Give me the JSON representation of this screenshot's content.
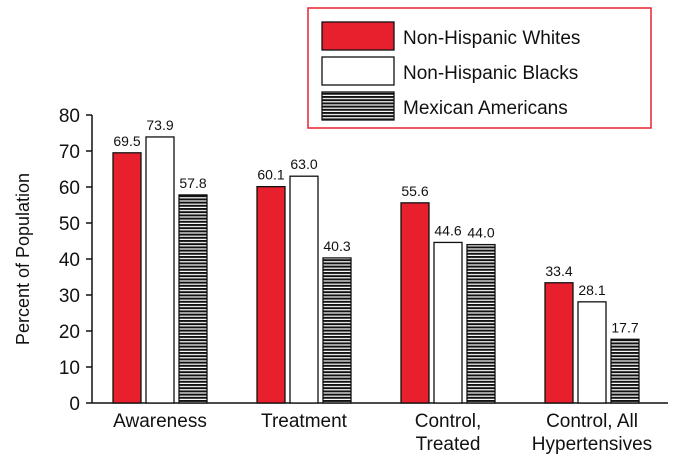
{
  "chart_data": {
    "type": "bar",
    "ylabel": "Percent of  Population",
    "ylim": [
      0,
      80
    ],
    "yticks": [
      0,
      10,
      20,
      30,
      40,
      50,
      60,
      70,
      80
    ],
    "categories": [
      [
        "Awareness"
      ],
      [
        "Treatment"
      ],
      [
        "Control,",
        "Treated"
      ],
      [
        "Control, All",
        "Hypertensives"
      ]
    ],
    "series": [
      {
        "name": "Non-Hispanic Whites",
        "values": [
          69.5,
          60.1,
          55.6,
          33.4
        ],
        "labels": [
          "69.5",
          "60.1",
          "55.6",
          "33.4"
        ],
        "fill": "#e8202e"
      },
      {
        "name": "Non-Hispanic Blacks",
        "values": [
          73.9,
          63.0,
          44.6,
          28.1
        ],
        "labels": [
          "73.9",
          "63.0",
          "44.6",
          "28.1"
        ],
        "fill": "#ffffff"
      },
      {
        "name": "Mexican Americans",
        "values": [
          57.8,
          40.3,
          44.0,
          17.7
        ],
        "labels": [
          "57.8",
          "40.3",
          "44.0",
          "17.7"
        ],
        "fill": "striped"
      }
    ],
    "legend_position": "top-right",
    "legend_border_color": "#e8202e",
    "grid": false
  }
}
